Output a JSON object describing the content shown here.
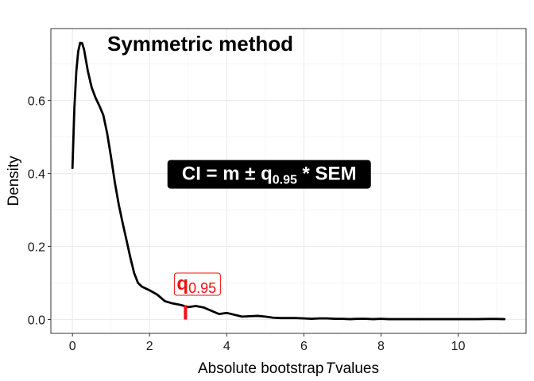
{
  "chart_data": {
    "type": "line",
    "title": "Symmetric method",
    "xlabel": {
      "prefix": "Absolute bootstrap",
      "italic": "T",
      "suffix": "values"
    },
    "ylabel": "Density",
    "xlim": [
      -0.56,
      11.76
    ],
    "ylim": [
      -0.038,
      0.797
    ],
    "x_ticks": [
      0,
      2,
      4,
      6,
      8,
      10
    ],
    "x_tick_labels": [
      "0",
      "2",
      "4",
      "6",
      "8",
      "10"
    ],
    "y_ticks": [
      0.0,
      0.2,
      0.4,
      0.6
    ],
    "y_tick_labels": [
      "0.0",
      "0.2",
      "0.4",
      "0.6"
    ],
    "grid": true,
    "series": [
      {
        "color": "#000000",
        "x": [
          0.0,
          0.05,
          0.1,
          0.15,
          0.2,
          0.25,
          0.3,
          0.35,
          0.4,
          0.5,
          0.6,
          0.7,
          0.8,
          0.9,
          1.0,
          1.1,
          1.2,
          1.3,
          1.4,
          1.5,
          1.6,
          1.7,
          1.8,
          1.9,
          2.0,
          2.2,
          2.4,
          2.6,
          2.8,
          3.0,
          3.2,
          3.4,
          3.6,
          3.8,
          4.0,
          4.2,
          4.4,
          4.6,
          4.8,
          5.0,
          5.2,
          5.4,
          5.6,
          5.8,
          6.0,
          6.2,
          6.4,
          6.6,
          6.8,
          7.0,
          7.2,
          7.4,
          7.6,
          7.8,
          8.0,
          8.2,
          8.5,
          9.0,
          9.5,
          10.0,
          10.5,
          10.8,
          11.0,
          11.2
        ],
        "y": [
          0.415,
          0.58,
          0.68,
          0.735,
          0.758,
          0.757,
          0.74,
          0.71,
          0.68,
          0.635,
          0.607,
          0.585,
          0.56,
          0.51,
          0.445,
          0.375,
          0.315,
          0.265,
          0.218,
          0.17,
          0.127,
          0.1,
          0.09,
          0.085,
          0.08,
          0.068,
          0.05,
          0.044,
          0.04,
          0.034,
          0.037,
          0.033,
          0.024,
          0.015,
          0.018,
          0.013,
          0.008,
          0.009,
          0.01,
          0.008,
          0.005,
          0.004,
          0.004,
          0.004,
          0.003,
          0.002,
          0.003,
          0.003,
          0.002,
          0.002,
          0.001,
          0.002,
          0.002,
          0.001,
          0.002,
          0.001,
          0.001,
          0.001,
          0.001,
          0.001,
          0.001,
          0.0015,
          0.0015,
          0.001
        ]
      }
    ],
    "quantile": {
      "x": 2.93,
      "color": "#ee1111",
      "label_main": "q",
      "label_sub": "0.95"
    },
    "formula": {
      "prefix": "CI = m ± q",
      "sub": "0.95",
      "suffix": " * SEM",
      "x": 5.1,
      "y": 0.4
    }
  }
}
